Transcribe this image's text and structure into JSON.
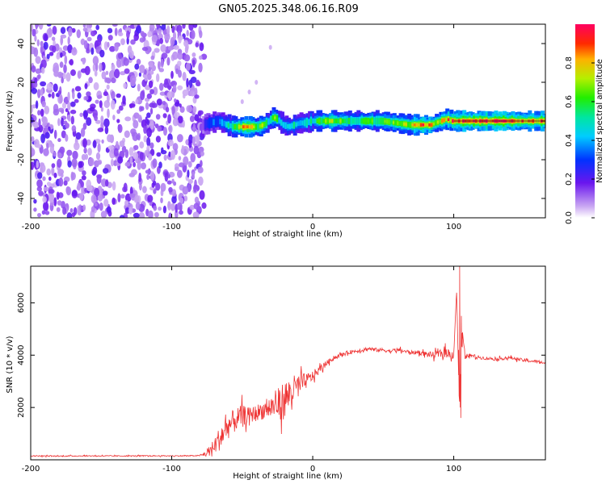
{
  "title": "GN05.2025.348.06.16.R09",
  "chart_data": [
    {
      "type": "heatmap",
      "name": "spectrogram",
      "xlabel": "Height of straight line (km)",
      "ylabel": "Frequency (Hz)",
      "xlim": [
        -200,
        165
      ],
      "ylim": [
        -50,
        50
      ],
      "xticks": [
        -200,
        -100,
        0,
        100
      ],
      "yticks": [
        -40,
        -20,
        0,
        20,
        40
      ],
      "noise_region_x": [
        -200,
        -77
      ],
      "signal_ridge": {
        "x": [
          -77,
          -72,
          -66,
          -60,
          -55,
          -50,
          -44,
          -38,
          -34,
          -30,
          -27,
          -24,
          -20,
          -16,
          -12,
          -8,
          -4,
          0,
          10,
          30,
          50,
          70,
          75,
          85,
          88,
          92,
          96,
          100,
          110,
          130,
          150,
          165
        ],
        "freq": [
          -2,
          -1,
          0,
          -2,
          -3,
          -3,
          -3,
          -3,
          -2,
          0,
          2,
          1,
          -2,
          -3,
          -2,
          -1,
          -1,
          0,
          0,
          0,
          0,
          -2,
          -2,
          -2,
          -1,
          0,
          1,
          0,
          0,
          0,
          0,
          0
        ],
        "amplitude": [
          0.15,
          0.35,
          0.3,
          0.45,
          0.6,
          0.75,
          0.9,
          0.55,
          0.7,
          0.45,
          0.75,
          0.5,
          0.4,
          0.45,
          0.5,
          0.4,
          0.45,
          0.5,
          0.7,
          0.55,
          0.6,
          0.7,
          0.9,
          0.85,
          0.6,
          0.75,
          0.8,
          0.9,
          0.95,
          0.95,
          0.9,
          0.85
        ]
      },
      "colorbar": {
        "label": "Normalized spectral amplitude",
        "ticks": [
          0.0,
          0.2,
          0.4,
          0.6,
          0.8
        ],
        "tick_labels": [
          "0.0",
          "0.2",
          "0.4",
          "0.6",
          "0.8"
        ],
        "range": [
          0,
          1
        ]
      }
    },
    {
      "type": "line",
      "name": "snr",
      "xlabel": "Height of straight line (km)",
      "ylabel": "SNR (10 * v/v)",
      "xlim": [
        -200,
        165
      ],
      "ylim": [
        0,
        7400
      ],
      "xticks": [
        -200,
        -100,
        0,
        100
      ],
      "yticks": [
        2000,
        4000,
        6000
      ],
      "series": [
        {
          "name": "SNR",
          "color": "#ee3333",
          "x": [
            -200,
            -180,
            -160,
            -140,
            -120,
            -100,
            -90,
            -80,
            -75,
            -70,
            -65,
            -60,
            -55,
            -50,
            -45,
            -40,
            -35,
            -30,
            -25,
            -20,
            -15,
            -10,
            -5,
            0,
            5,
            10,
            15,
            20,
            25,
            30,
            35,
            40,
            45,
            50,
            55,
            60,
            65,
            70,
            75,
            80,
            85,
            90,
            95,
            100,
            102,
            104,
            106,
            108,
            110,
            115,
            120,
            130,
            140,
            150,
            160,
            165
          ],
          "y": [
            150,
            140,
            150,
            145,
            150,
            150,
            150,
            160,
            250,
            500,
            900,
            1300,
            1500,
            1700,
            1700,
            1800,
            1900,
            2000,
            2100,
            2300,
            2600,
            2850,
            3000,
            3200,
            3450,
            3700,
            3900,
            4000,
            4100,
            4150,
            4200,
            4250,
            4200,
            4200,
            4150,
            4200,
            4150,
            4100,
            4100,
            4050,
            4000,
            4050,
            4100,
            4000,
            6500,
            2000,
            5000,
            3900,
            4000,
            3950,
            3900,
            3850,
            3900,
            3800,
            3750,
            3700
          ],
          "noise_amplitude": [
            40,
            40,
            40,
            40,
            40,
            40,
            40,
            40,
            300,
            600,
            1000,
            1000,
            900,
            800,
            600,
            600,
            700,
            900,
            1200,
            1500,
            1200,
            900,
            600,
            400,
            300,
            200,
            150,
            150,
            150,
            150,
            150,
            150,
            150,
            150,
            150,
            150,
            150,
            150,
            150,
            200,
            250,
            300,
            400,
            300,
            0,
            0,
            0,
            200,
            150,
            150,
            120,
            120,
            120,
            120,
            120,
            120
          ]
        }
      ]
    }
  ]
}
